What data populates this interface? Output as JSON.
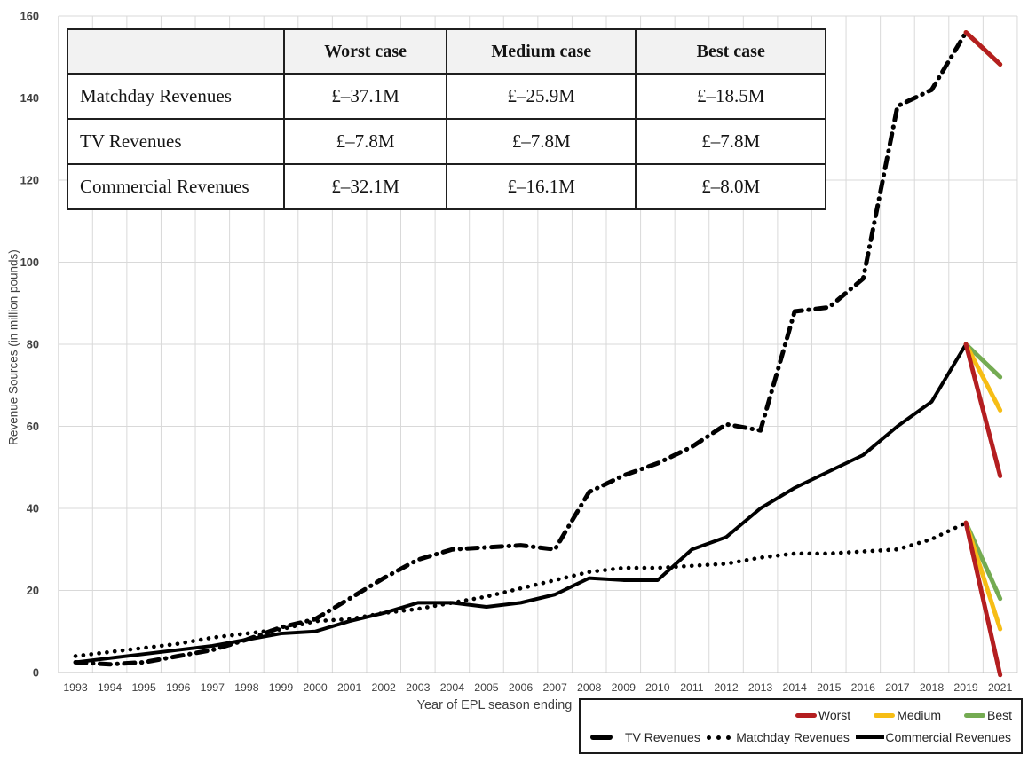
{
  "colors": {
    "series_black": "#000000",
    "worst_red": "#b41e20",
    "medium_yellow": "#f6bd15",
    "best_green": "#74ab52",
    "gridline": "#d9d9d9",
    "axis_line": "#bfbfbf",
    "tick_text": "#404040",
    "table_header_bg": "#f2f2f2"
  },
  "table": {
    "headers": [
      "",
      "Worst case",
      "Medium case",
      "Best case"
    ],
    "rows": [
      {
        "label": "Matchday Revenues",
        "values": [
          "£–37.1M",
          "£–25.9M",
          "£–18.5M"
        ]
      },
      {
        "label": "TV Revenues",
        "values": [
          "£–7.8M",
          "£–7.8M",
          "£–7.8M"
        ]
      },
      {
        "label": "Commercial Revenues",
        "values": [
          "£–32.1M",
          "£–16.1M",
          "£–8.0M"
        ]
      }
    ]
  },
  "chart_data": {
    "type": "line",
    "title": "",
    "xlabel": "Year of EPL season ending",
    "ylabel": "Revenue Sources (in million pounds)",
    "ylim": [
      0,
      160
    ],
    "ytick_step": 20,
    "grid": true,
    "legend_position": "bottom-right",
    "categories": [
      "1993",
      "1994",
      "1995",
      "1996",
      "1997",
      "1998",
      "1999",
      "2000",
      "2001",
      "2002",
      "2003",
      "2004",
      "2005",
      "2006",
      "2007",
      "2008",
      "2009",
      "2010",
      "2011",
      "2012",
      "2013",
      "2014",
      "2015",
      "2016",
      "2017",
      "2018",
      "2019",
      "2021"
    ],
    "series": [
      {
        "name": "TV Revenues",
        "style": "dashdot",
        "color": "#000000",
        "values": [
          2.5,
          2,
          2.5,
          4,
          5.5,
          8,
          11,
          13,
          18,
          23,
          27.5,
          30,
          30.5,
          31,
          30,
          44,
          48,
          51,
          55,
          60.5,
          59,
          88,
          89,
          96,
          138,
          142,
          156
        ]
      },
      {
        "name": "Matchday Revenues",
        "style": "dotted",
        "color": "#000000",
        "values": [
          4,
          5,
          6,
          7,
          8.5,
          9.5,
          10.5,
          12.5,
          13,
          14.5,
          15.5,
          17,
          18.5,
          20.5,
          22.5,
          24.5,
          25.5,
          25.5,
          26,
          26.5,
          28,
          29,
          29,
          29.5,
          30,
          32.5,
          36.5
        ]
      },
      {
        "name": "Commercial Revenues",
        "style": "solid",
        "color": "#000000",
        "values": [
          2.5,
          3.5,
          4.5,
          5.5,
          6.5,
          8,
          9.5,
          10,
          12.5,
          14.5,
          17,
          17,
          16,
          17,
          19,
          23,
          22.5,
          22.5,
          30,
          33,
          40,
          45,
          49,
          53,
          60,
          66,
          80
        ]
      }
    ],
    "projections": {
      "from_year": "2019",
      "to_year": "2021",
      "scenarios": [
        {
          "name": "Worst",
          "color": "#b41e20",
          "values": {
            "TV Revenues": 148.2,
            "Matchday Revenues": -0.6,
            "Commercial Revenues": 47.9
          }
        },
        {
          "name": "Medium",
          "color": "#f6bd15",
          "values": {
            "TV Revenues": 148.2,
            "Matchday Revenues": 10.6,
            "Commercial Revenues": 63.9
          }
        },
        {
          "name": "Best",
          "color": "#74ab52",
          "values": {
            "TV Revenues": 148.2,
            "Matchday Revenues": 18.0,
            "Commercial Revenues": 72.0
          }
        }
      ]
    }
  }
}
